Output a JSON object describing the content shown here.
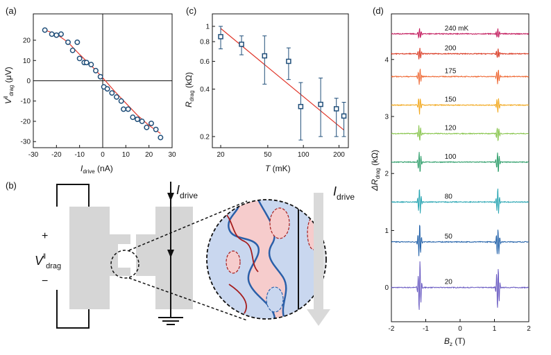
{
  "figure": {
    "panels": {
      "a": "(a)",
      "b": "(b)",
      "c": "(c)",
      "d": "(d)"
    },
    "colors": {
      "axis": "#111111",
      "fit": "#e0362a",
      "marker": "#1f4e79",
      "device_gray": "#d6d6d6",
      "domain_blue": "#c9d7ef",
      "domain_red": "#f6cccc",
      "edge_blue": "#2a5fa8",
      "edge_red": "#a51d1d"
    }
  },
  "panel_b": {
    "v_label": "V",
    "v_sup": "‖",
    "v_sub": "drag",
    "plus": "+",
    "minus": "−",
    "i_label_1": "I",
    "i_sub_1": "drive",
    "i_label_2": "I",
    "i_sub_2": "drive"
  },
  "chart_data": [
    {
      "id": "a",
      "type": "scatter",
      "title": "",
      "xlabel": "I",
      "xlabel_sub": "drive",
      "xlabel_unit": " (nA)",
      "ylabel": "V",
      "ylabel_sup": "‖",
      "ylabel_sub": "drag",
      "ylabel_unit": " (μV)",
      "xlim": [
        -30,
        30
      ],
      "ylim": [
        -33,
        33
      ],
      "xticks": [
        -30,
        -20,
        -10,
        0,
        10,
        20,
        30
      ],
      "yticks": [
        -30,
        -20,
        -10,
        0,
        10,
        20
      ],
      "zero_lines": true,
      "x": [
        -25,
        -22,
        -20,
        -18,
        -15,
        -13,
        -11,
        -10,
        -8,
        -7,
        -5,
        -3,
        -1,
        0.5,
        2,
        4,
        6,
        8,
        9,
        11,
        13,
        15,
        17,
        19,
        21,
        23,
        25
      ],
      "y": [
        25,
        23,
        22.5,
        23,
        19,
        15,
        19,
        11,
        9,
        9,
        8,
        5,
        2,
        -3,
        -4,
        -6,
        -8,
        -10,
        -14,
        -14,
        -18,
        -19,
        -20,
        -23,
        -21,
        -24,
        -28
      ],
      "fit_x": [
        -25,
        -20,
        -15,
        -10,
        -5,
        0,
        5,
        10,
        15,
        20,
        25
      ],
      "fit_y": [
        25,
        23,
        19,
        13,
        7.5,
        1.5,
        -5,
        -11,
        -17,
        -22,
        -26
      ]
    },
    {
      "id": "c",
      "type": "scatter",
      "title": "",
      "xlabel": "T",
      "xlabel_unit": " (mK)",
      "ylabel": "R",
      "ylabel_sub": "drag",
      "ylabel_unit": " (kΩ)",
      "xscale": "log",
      "yscale": "log",
      "xlim": [
        17,
        240
      ],
      "ylim": [
        0.17,
        1.2
      ],
      "xticks": [
        20,
        50,
        100,
        200
      ],
      "yticks": [
        0.2,
        0.4,
        0.6,
        0.8,
        1
      ],
      "yticklabels": [
        "0.2",
        "0.4",
        "0.6",
        "0.8",
        "1"
      ],
      "x": [
        20,
        30,
        47,
        75,
        95,
        140,
        190,
        220
      ],
      "y": [
        0.86,
        0.77,
        0.65,
        0.6,
        0.31,
        0.32,
        0.3,
        0.27
      ],
      "err_low": [
        0.72,
        0.66,
        0.43,
        0.46,
        0.19,
        0.2,
        0.2,
        0.2
      ],
      "err_high": [
        1.0,
        0.87,
        0.87,
        0.73,
        0.44,
        0.47,
        0.35,
        0.33
      ],
      "fit_x": [
        20,
        220
      ],
      "fit_y": [
        0.97,
        0.22
      ]
    },
    {
      "id": "d",
      "type": "line",
      "title": "",
      "xlabel": "B",
      "xlabel_sub": "z",
      "xlabel_unit": " (T)",
      "ylabel": "ΔR",
      "ylabel_sub": "drag",
      "ylabel_unit": " (kΩ)",
      "xlim": [
        -2,
        2
      ],
      "ylim": [
        -0.6,
        4.8
      ],
      "xticks": [
        -2,
        -1,
        0,
        1,
        2
      ],
      "yticks": [
        0,
        1,
        2,
        3,
        4
      ],
      "series": [
        {
          "name": "20",
          "offset": 0.0,
          "color": "#6a5bc2",
          "amp": 0.45
        },
        {
          "name": "50",
          "offset": 0.8,
          "color": "#1f5fa8",
          "amp": 0.3
        },
        {
          "name": "80",
          "offset": 1.5,
          "color": "#2aa6b3",
          "amp": 0.25
        },
        {
          "name": "100",
          "offset": 2.2,
          "color": "#2e9e6a",
          "amp": 0.22
        },
        {
          "name": "120",
          "offset": 2.7,
          "color": "#86c44a",
          "amp": 0.15
        },
        {
          "name": "150",
          "offset": 3.2,
          "color": "#f2a81d",
          "amp": 0.15
        },
        {
          "name": "175",
          "offset": 3.7,
          "color": "#ef6a36",
          "amp": 0.15
        },
        {
          "name": "200",
          "offset": 4.1,
          "color": "#d9361f",
          "amp": 0.1
        },
        {
          "name": "240 mK",
          "offset": 4.45,
          "color": "#c2185b",
          "amp": 0.1
        }
      ]
    }
  ]
}
